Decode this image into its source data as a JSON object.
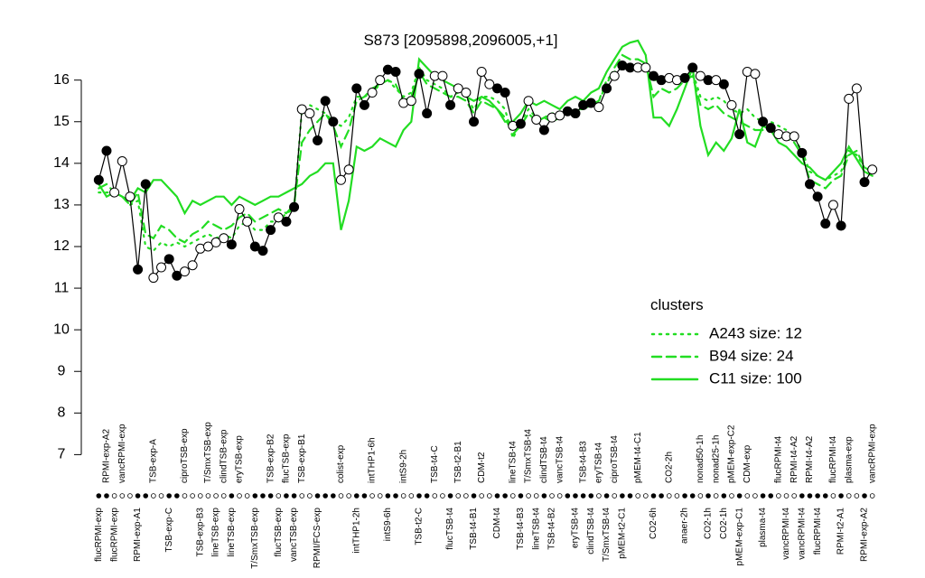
{
  "chart_data": {
    "type": "line",
    "title": "S873 [2095898,2096005,+1]",
    "categories": [
      "flucRPMI-exp",
      "RPMI-exp-A2",
      "flucRPMI-exp",
      "vancRPMI-exp",
      null,
      "RPMI-exp-A1",
      null,
      "TSB-exp-A",
      null,
      "TSB-exp-C",
      null,
      "ciproTSB-exp",
      null,
      "TSB-exp-B3",
      "T/SmxTSB-exp",
      "lineTSB-exp",
      "clindTSB-exp",
      "lineTSB-exp",
      "eryTSB-exp",
      null,
      "T/SmxTSB-exp",
      null,
      "TSB-exp-B2",
      "flucTSB-exp",
      "flucTSB-exp",
      "vancTSB-exp",
      "TSB-exp-B1",
      null,
      "RPMI/FCS-exp",
      null,
      null,
      "colist-exp",
      null,
      "intTHP1-2h",
      null,
      "intTHP1-6h",
      null,
      "intS9-6h",
      null,
      "intS9-2h",
      null,
      "TSB-t2-C",
      null,
      "TSB-t4-C",
      null,
      "flucTSB-t4",
      "TSB-t2-B1",
      null,
      "TSB-t4-B1",
      "CDM-t2",
      null,
      "CDM-t4",
      null,
      "lineTSB-t4",
      "TSB-t4-B3",
      "T/SmxTSB-t4",
      "lineTSB-t4",
      "clindTSB-t4",
      "TSB-t4-B2",
      "vancTSB-t4",
      null,
      "eryTSB-t4",
      "TSB-t4-B3",
      "clindTSB-t4",
      "eryTSB-t4",
      "T/SmxTSB-t4",
      "ciproTSB-t4",
      "pMEM-t2-C1",
      null,
      "pMEM-t4-C1",
      null,
      "CO2-6h",
      null,
      "CO2-2h",
      null,
      "anaer-2h",
      null,
      "nonad50-1h",
      "CO2-1h",
      "nonad25-1h",
      "CO2-1h",
      "pMEM-exp-C2",
      "pMEM-exp-C1",
      "CDM-exp",
      null,
      "plasma-t4",
      null,
      "flucRPMI-t4",
      "vancRPMI-t4",
      "RPMI-t4-A2",
      "vancRPMI-t4",
      "RPMI-t4-A2",
      "flucRPMI-t4",
      null,
      "flucRPMI-t4",
      "RPMI-t2-A1",
      "plasma-exp",
      null,
      "RPMI-exp-A2",
      "vancRPMI-exp"
    ],
    "values": [
      13.6,
      14.3,
      13.3,
      14.05,
      13.2,
      11.45,
      13.5,
      11.25,
      11.5,
      11.7,
      11.3,
      11.4,
      11.55,
      11.95,
      12.0,
      12.1,
      12.2,
      12.05,
      12.9,
      12.6,
      12.0,
      11.9,
      12.4,
      12.7,
      12.6,
      12.95,
      15.3,
      15.2,
      14.55,
      15.5,
      15.0,
      13.6,
      13.85,
      15.8,
      15.4,
      15.7,
      16.0,
      16.25,
      16.2,
      15.45,
      15.5,
      16.15,
      15.2,
      16.1,
      16.1,
      15.4,
      15.8,
      15.7,
      15.0,
      16.2,
      15.9,
      15.8,
      15.7,
      14.9,
      14.95,
      15.5,
      15.05,
      14.8,
      15.1,
      15.15,
      15.25,
      15.2,
      15.4,
      15.45,
      15.35,
      15.8,
      16.1,
      16.35,
      16.3,
      16.3,
      16.3,
      16.1,
      16.0,
      16.05,
      16.0,
      16.05,
      16.3,
      16.1,
      16.0,
      16.0,
      15.9,
      15.4,
      14.7,
      16.2,
      16.15,
      15.0,
      14.85,
      14.7,
      14.65,
      14.65,
      14.25,
      13.5,
      13.2,
      12.55,
      13.0,
      12.5,
      15.55,
      15.8,
      13.55,
      13.85
    ],
    "marker_filled": [
      true,
      true,
      false,
      false,
      false,
      true,
      true,
      false,
      false,
      true,
      true,
      false,
      false,
      false,
      false,
      false,
      false,
      true,
      false,
      false,
      true,
      true,
      true,
      false,
      true,
      true,
      false,
      false,
      true,
      true,
      true,
      false,
      false,
      true,
      true,
      false,
      false,
      true,
      true,
      false,
      false,
      true,
      true,
      false,
      false,
      true,
      false,
      false,
      true,
      false,
      false,
      true,
      true,
      false,
      true,
      false,
      false,
      true,
      false,
      false,
      true,
      true,
      true,
      true,
      false,
      true,
      false,
      true,
      true,
      false,
      false,
      true,
      true,
      false,
      false,
      true,
      true,
      false,
      true,
      false,
      true,
      false,
      true,
      false,
      false,
      true,
      true,
      false,
      false,
      false,
      true,
      true,
      true,
      true,
      false,
      true,
      false,
      false,
      true,
      false
    ],
    "line_color": "#000000",
    "legend_title": "clusters",
    "series": [
      {
        "name": "A243 size: 12",
        "style": "dotted",
        "color": "#22dd22",
        "values": [
          13.3,
          13.3,
          13.3,
          13.2,
          13.0,
          13.1,
          12.0,
          11.9,
          12.1,
          12.0,
          12.1,
          12.0,
          12.1,
          12.2,
          12.3,
          12.2,
          12.3,
          12.2,
          12.5,
          12.6,
          12.4,
          12.4,
          12.6,
          12.6,
          12.8,
          12.9,
          15.3,
          15.4,
          15.3,
          15.2,
          15.0,
          14.9,
          15.1,
          15.6,
          15.6,
          15.7,
          15.9,
          16.0,
          15.8,
          15.6,
          15.7,
          16.3,
          16.0,
          15.9,
          15.8,
          15.6,
          15.7,
          15.6,
          15.3,
          15.6,
          15.6,
          15.5,
          15.3,
          14.6,
          15.0,
          15.3,
          15.1,
          15.1,
          15.2,
          15.2,
          15.3,
          15.2,
          15.4,
          15.4,
          15.5,
          16.0,
          16.2,
          16.3,
          16.3,
          16.4,
          16.3,
          16.0,
          16.0,
          16.0,
          16.0,
          16.1,
          16.2,
          15.6,
          15.5,
          15.6,
          15.5,
          15.3,
          15.2,
          15.3,
          15.1,
          15.0,
          15.0,
          14.9,
          14.8,
          14.6,
          14.3,
          13.8,
          13.7,
          13.6,
          13.7,
          13.8,
          14.3,
          14.2,
          13.9,
          13.8
        ]
      },
      {
        "name": "B94 size: 24",
        "style": "dashed",
        "color": "#22dd22",
        "values": [
          13.4,
          13.5,
          13.3,
          13.2,
          13.0,
          13.3,
          12.3,
          12.2,
          12.5,
          12.4,
          12.2,
          12.1,
          12.3,
          12.4,
          12.6,
          12.5,
          12.4,
          12.5,
          12.7,
          12.8,
          12.6,
          12.7,
          12.8,
          12.9,
          12.8,
          13.0,
          14.5,
          14.8,
          15.0,
          15.2,
          14.9,
          14.4,
          14.8,
          15.5,
          15.6,
          15.8,
          15.9,
          16.0,
          15.9,
          15.5,
          15.6,
          16.2,
          15.9,
          15.8,
          15.7,
          15.6,
          15.6,
          15.5,
          15.2,
          15.5,
          15.4,
          15.3,
          15.1,
          14.7,
          14.9,
          15.2,
          15.0,
          15.1,
          15.0,
          15.1,
          15.2,
          15.3,
          15.3,
          15.4,
          15.5,
          15.9,
          16.3,
          16.6,
          16.5,
          16.5,
          16.4,
          15.6,
          15.8,
          15.7,
          15.8,
          16.0,
          16.1,
          15.4,
          15.3,
          15.4,
          15.2,
          15.1,
          15.0,
          14.9,
          14.8,
          14.8,
          14.8,
          14.7,
          14.6,
          14.5,
          14.2,
          13.6,
          13.5,
          13.4,
          13.6,
          13.7,
          14.2,
          14.3,
          13.9,
          13.8
        ]
      },
      {
        "name": "C11 size: 100",
        "style": "solid",
        "color": "#22dd22",
        "values": [
          13.5,
          13.2,
          13.3,
          13.2,
          13.1,
          13.4,
          13.3,
          13.6,
          13.6,
          13.4,
          13.2,
          12.8,
          13.1,
          13.0,
          13.1,
          13.2,
          13.2,
          13.0,
          13.2,
          13.1,
          13.0,
          13.1,
          13.2,
          13.2,
          13.3,
          13.4,
          13.5,
          13.7,
          13.8,
          14.0,
          14.0,
          12.4,
          13.1,
          14.4,
          14.3,
          14.4,
          14.6,
          14.5,
          14.4,
          14.8,
          15.0,
          16.5,
          16.3,
          16.1,
          16.0,
          15.9,
          15.8,
          15.6,
          15.5,
          15.6,
          15.5,
          15.3,
          15.0,
          15.0,
          15.2,
          15.5,
          15.4,
          15.5,
          15.4,
          15.3,
          15.5,
          15.6,
          15.5,
          15.7,
          15.8,
          16.2,
          16.5,
          16.8,
          16.9,
          16.95,
          16.6,
          15.1,
          15.1,
          14.9,
          15.3,
          15.8,
          16.3,
          14.9,
          14.2,
          14.5,
          14.3,
          14.6,
          15.3,
          14.5,
          14.4,
          14.9,
          14.8,
          14.5,
          14.4,
          14.2,
          14.0,
          13.9,
          13.7,
          13.6,
          13.8,
          14.0,
          14.4,
          14.1,
          13.8,
          13.7
        ]
      }
    ],
    "ylim": [
      6.9,
      17.1
    ],
    "yticks": [
      7,
      8,
      9,
      10,
      11,
      12,
      13,
      14,
      15,
      16
    ]
  }
}
